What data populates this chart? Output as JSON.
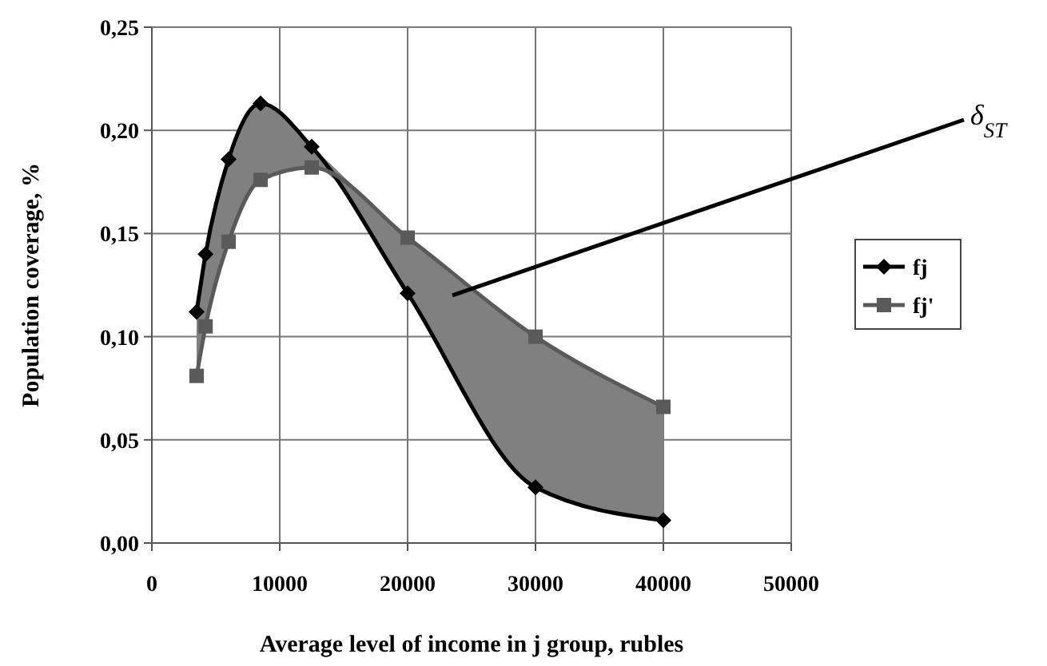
{
  "chart_data": {
    "type": "line",
    "xlabel": "Average level of income in j group, rubles",
    "ylabel": "Population coverage, %",
    "x": [
      3500,
      4200,
      6000,
      8500,
      12500,
      20000,
      30000,
      40000
    ],
    "series": [
      {
        "name": "fj",
        "color": "#000000",
        "marker": "diamond",
        "values": [
          0.112,
          0.14,
          0.186,
          0.213,
          0.192,
          0.121,
          0.027,
          0.011
        ]
      },
      {
        "name": "fj'",
        "color": "#5a5a5a",
        "marker": "square",
        "values": [
          0.081,
          0.105,
          0.146,
          0.176,
          0.182,
          0.148,
          0.1,
          0.066
        ],
        "lower": [
          0.081,
          0.105,
          0.146,
          0.176,
          0.182,
          0.121,
          0.027,
          0.011
        ],
        "upper": [
          0.112,
          0.14,
          0.186,
          0.213,
          0.192,
          0.148,
          0.1,
          0.066
        ]
      }
    ],
    "xlim": [
      0,
      50000
    ],
    "xticks": [
      0,
      10000,
      20000,
      30000,
      40000,
      50000
    ],
    "ylim": [
      0,
      0.25
    ],
    "yticks": [
      {
        "value": 0,
        "label": "0,00"
      },
      {
        "value": 0.05,
        "label": "0,05"
      },
      {
        "value": 0.1,
        "label": "0,10"
      },
      {
        "value": 0.15,
        "label": "0,15"
      },
      {
        "value": 0.2,
        "label": "0,20"
      },
      {
        "value": 0.25,
        "label": "0,25"
      }
    ],
    "grid": true,
    "legend": "right",
    "line_style": "solid",
    "annotations": [
      "δ$_{ST}$"
    ]
  }
}
